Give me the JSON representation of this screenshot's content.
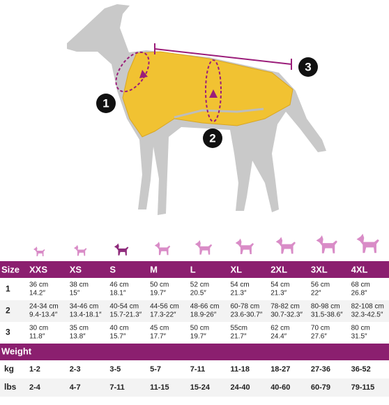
{
  "markers": [
    "1",
    "2",
    "3"
  ],
  "table": {
    "size_label": "Size",
    "sizes": [
      "XXS",
      "XS",
      "S",
      "M",
      "L",
      "XL",
      "2XL",
      "3XL",
      "4XL"
    ],
    "measure_rows": [
      {
        "label": "1",
        "cells": [
          [
            "36 cm",
            "14.2″"
          ],
          [
            "38 cm",
            "15″"
          ],
          [
            "46 cm",
            "18.1″"
          ],
          [
            "50 cm",
            "19.7″"
          ],
          [
            "52 cm",
            "20.5″"
          ],
          [
            "54 cm",
            "21.3″"
          ],
          [
            "54 cm",
            "21.3″"
          ],
          [
            "56 cm",
            "22″"
          ],
          [
            "68 cm",
            "26.8″"
          ]
        ]
      },
      {
        "label": "2",
        "cells": [
          [
            "24-34 cm",
            "9.4-13.4″"
          ],
          [
            "34-46 cm",
            "13.4-18.1″"
          ],
          [
            "40-54 cm",
            "15.7-21.3″"
          ],
          [
            "44-56 cm",
            "17.3-22″"
          ],
          [
            "48-66 cm",
            "18.9-26″"
          ],
          [
            "60-78 cm",
            "23.6-30.7″"
          ],
          [
            "78-82 cm",
            "30.7-32.3″"
          ],
          [
            "80-98 cm",
            "31.5-38.6″"
          ],
          [
            "82-108 cm",
            "32.3-42.5″"
          ]
        ]
      },
      {
        "label": "3",
        "cells": [
          [
            "30 cm",
            "11.8″"
          ],
          [
            "35 cm",
            "13.8″"
          ],
          [
            "40 cm",
            "15.7″"
          ],
          [
            "45 cm",
            "17.7″"
          ],
          [
            "50 cm",
            "19.7″"
          ],
          [
            "55cm",
            "21.7″"
          ],
          [
            "62 cm",
            "24.4″"
          ],
          [
            "70 cm",
            "27.6″"
          ],
          [
            "80 cm",
            "31.5″"
          ]
        ]
      }
    ],
    "weight_label": "Weight",
    "weight_rows": [
      {
        "label": "kg",
        "cells": [
          "1-2",
          "2-3",
          "3-5",
          "5-7",
          "7-11",
          "11-18",
          "18-27",
          "27-36",
          "36-52"
        ]
      },
      {
        "label": "lbs",
        "cells": [
          "2-4",
          "4-7",
          "7-11",
          "11-15",
          "15-24",
          "24-40",
          "40-60",
          "60-79",
          "79-115"
        ]
      }
    ]
  }
}
